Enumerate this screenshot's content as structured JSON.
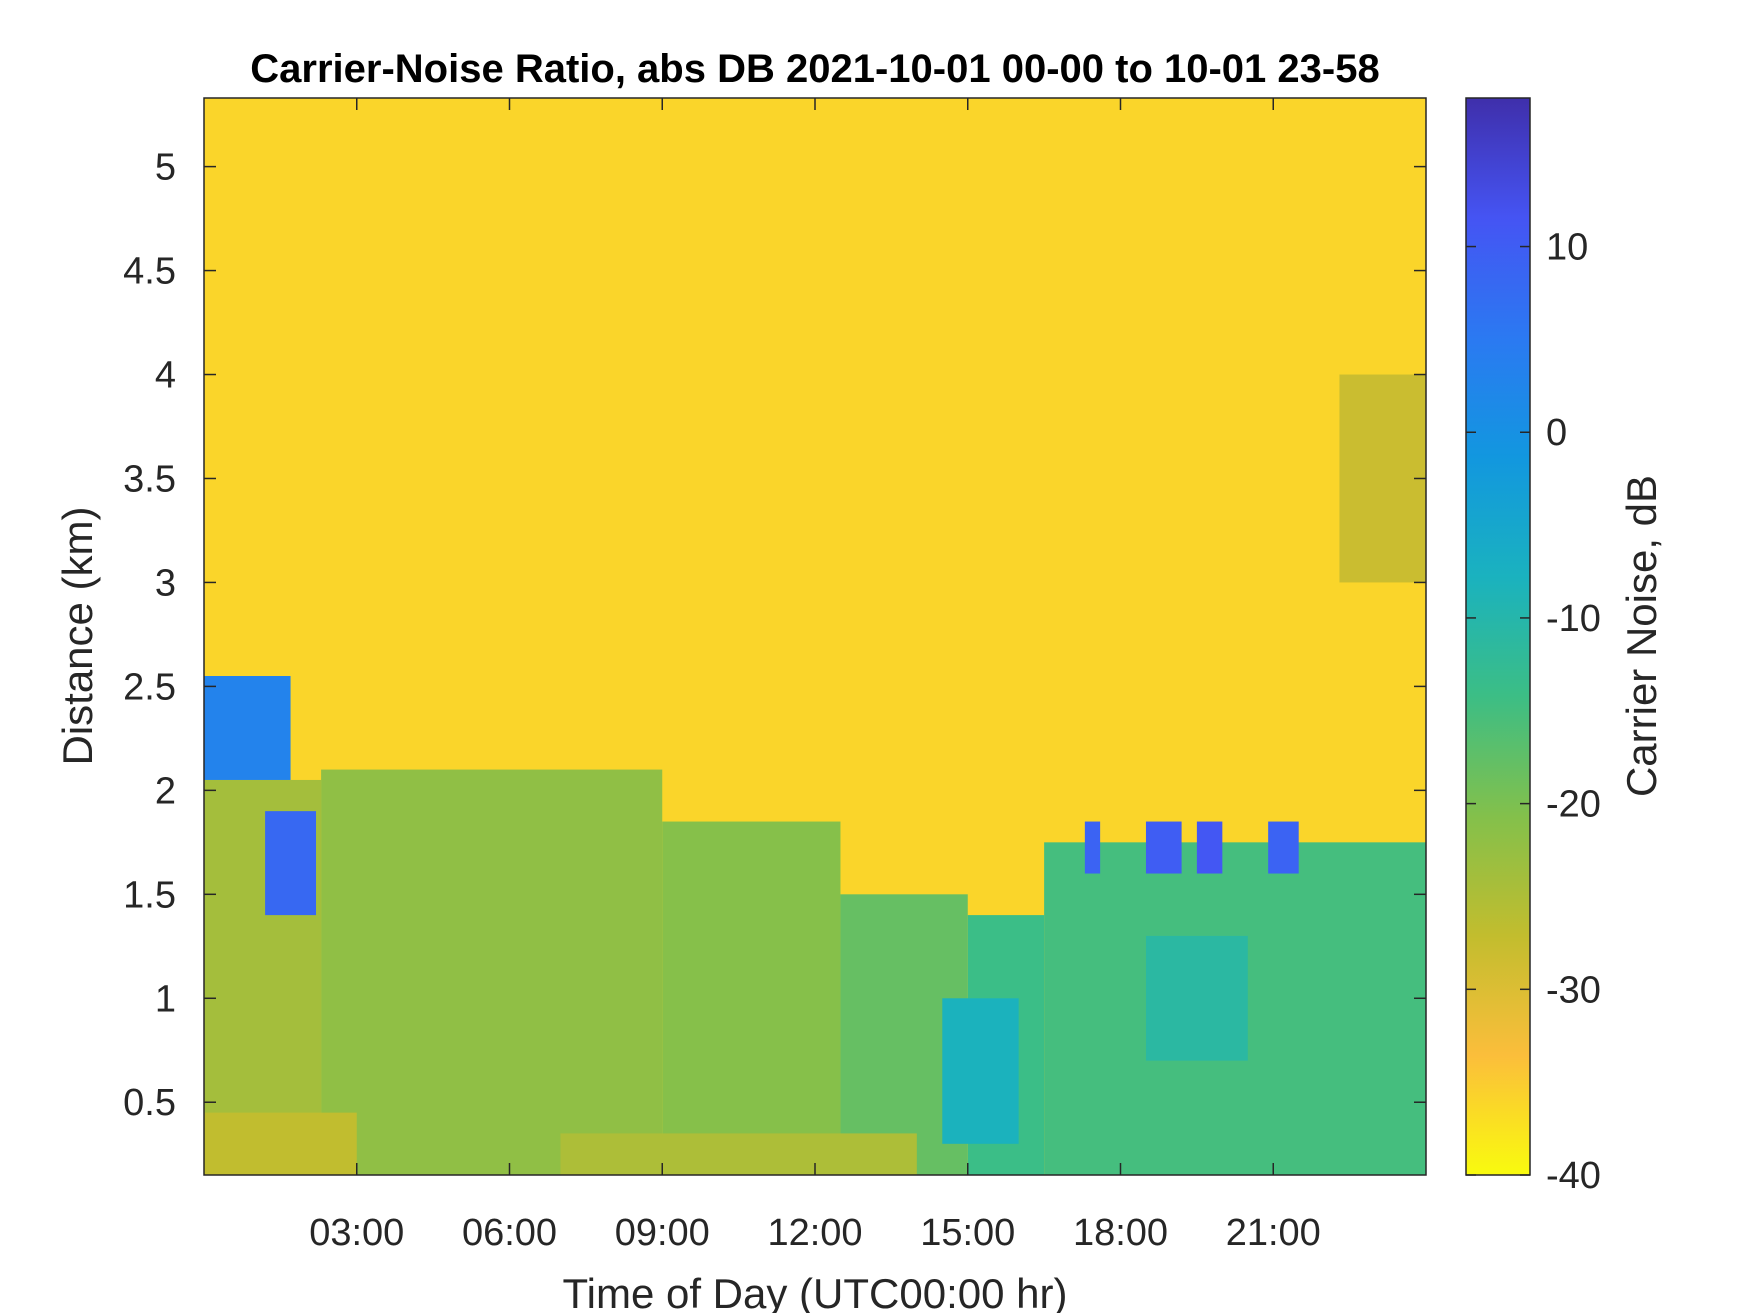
{
  "chart_data": {
    "type": "heatmap",
    "title": "Carrier-Noise Ratio, abs DB 2021-10-01 00-00 to 10-01 23-58",
    "xlabel": "Time of Day (UTC00:00 hr)",
    "ylabel": "Distance (km)",
    "colorbar_label": "Carrier Noise, dB",
    "x_unit": "hour",
    "xlim": [
      0,
      24
    ],
    "ylim": [
      0.15,
      5.33
    ],
    "clim": [
      -40,
      18
    ],
    "x_ticks": [
      3,
      6,
      9,
      12,
      15,
      18,
      21
    ],
    "x_tick_labels": [
      "03:00",
      "06:00",
      "09:00",
      "12:00",
      "15:00",
      "18:00",
      "21:00"
    ],
    "y_ticks": [
      0.5,
      1,
      1.5,
      2,
      2.5,
      3,
      3.5,
      4,
      4.5,
      5
    ],
    "y_tick_labels": [
      "0.5",
      "1",
      "1.5",
      "2",
      "2.5",
      "3",
      "3.5",
      "4",
      "4.5",
      "5"
    ],
    "colorbar_ticks": [
      -40,
      -30,
      -20,
      -10,
      0,
      10
    ],
    "colorbar_tick_labels": [
      "-40",
      "-30",
      "-20",
      "-10",
      "0",
      "10"
    ],
    "colormap": [
      "#f9fb0e",
      "#fbbe3b",
      "#c2bd2e",
      "#83c04b",
      "#3cbe85",
      "#1ab2bf",
      "#1297df",
      "#2b79f2",
      "#4554f3",
      "#3f2fab"
    ],
    "background_value": -36,
    "grid": false,
    "colorbar_position": "right",
    "regions": [
      {
        "name": "near-range signal 00-02",
        "x": [
          0,
          2.3
        ],
        "y": [
          0.15,
          2.05
        ],
        "value": -24
      },
      {
        "name": "signal 02-09",
        "x": [
          2.3,
          9.0
        ],
        "y": [
          0.15,
          2.1
        ],
        "value": -22
      },
      {
        "name": "signal 09-12",
        "x": [
          9.0,
          12.5
        ],
        "y": [
          0.15,
          1.85
        ],
        "value": -21
      },
      {
        "name": "signal 12-15",
        "x": [
          12.5,
          15.0
        ],
        "y": [
          0.15,
          1.5
        ],
        "value": -18
      },
      {
        "name": "signal 15-16.5",
        "x": [
          15.0,
          16.5
        ],
        "y": [
          0.15,
          1.4
        ],
        "value": -14
      },
      {
        "name": "signal 16.5-24",
        "x": [
          16.5,
          24.0
        ],
        "y": [
          0.15,
          1.75
        ],
        "value": -15
      },
      {
        "name": "core 14.5-16",
        "x": [
          14.5,
          16.0
        ],
        "y": [
          0.3,
          1.0
        ],
        "value": -8
      },
      {
        "name": "core 18.5-20.5",
        "x": [
          18.5,
          20.5
        ],
        "y": [
          0.7,
          1.3
        ],
        "value": -11
      },
      {
        "name": "low ground 00-03",
        "x": [
          0,
          3.0
        ],
        "y": [
          0.15,
          0.45
        ],
        "value": -27
      },
      {
        "name": "low ground 07-14",
        "x": [
          7.0,
          14.0
        ],
        "y": [
          0.15,
          0.35
        ],
        "value": -25
      },
      {
        "name": "high cloud 00-01.7",
        "x": [
          0,
          1.7
        ],
        "y": [
          2.05,
          2.55
        ],
        "value": 3
      },
      {
        "name": "cloud 01.2-02.2",
        "x": [
          1.2,
          2.2
        ],
        "y": [
          1.4,
          1.9
        ],
        "value": 8
      },
      {
        "name": "cloud 17.3-17.6",
        "x": [
          17.3,
          17.6
        ],
        "y": [
          1.6,
          1.85
        ],
        "value": 9
      },
      {
        "name": "cloud 18.5-19.2",
        "x": [
          18.5,
          19.2
        ],
        "y": [
          1.6,
          1.85
        ],
        "value": 10
      },
      {
        "name": "cloud 19.5-20.0",
        "x": [
          19.5,
          20.0
        ],
        "y": [
          1.6,
          1.85
        ],
        "value": 11
      },
      {
        "name": "cloud 20.9-21.5",
        "x": [
          20.9,
          21.5
        ],
        "y": [
          1.6,
          1.85
        ],
        "value": 9
      },
      {
        "name": "high aerosol 22.3-24",
        "x": [
          22.3,
          24.0
        ],
        "y": [
          3.0,
          4.0
        ],
        "value": -28
      }
    ]
  }
}
